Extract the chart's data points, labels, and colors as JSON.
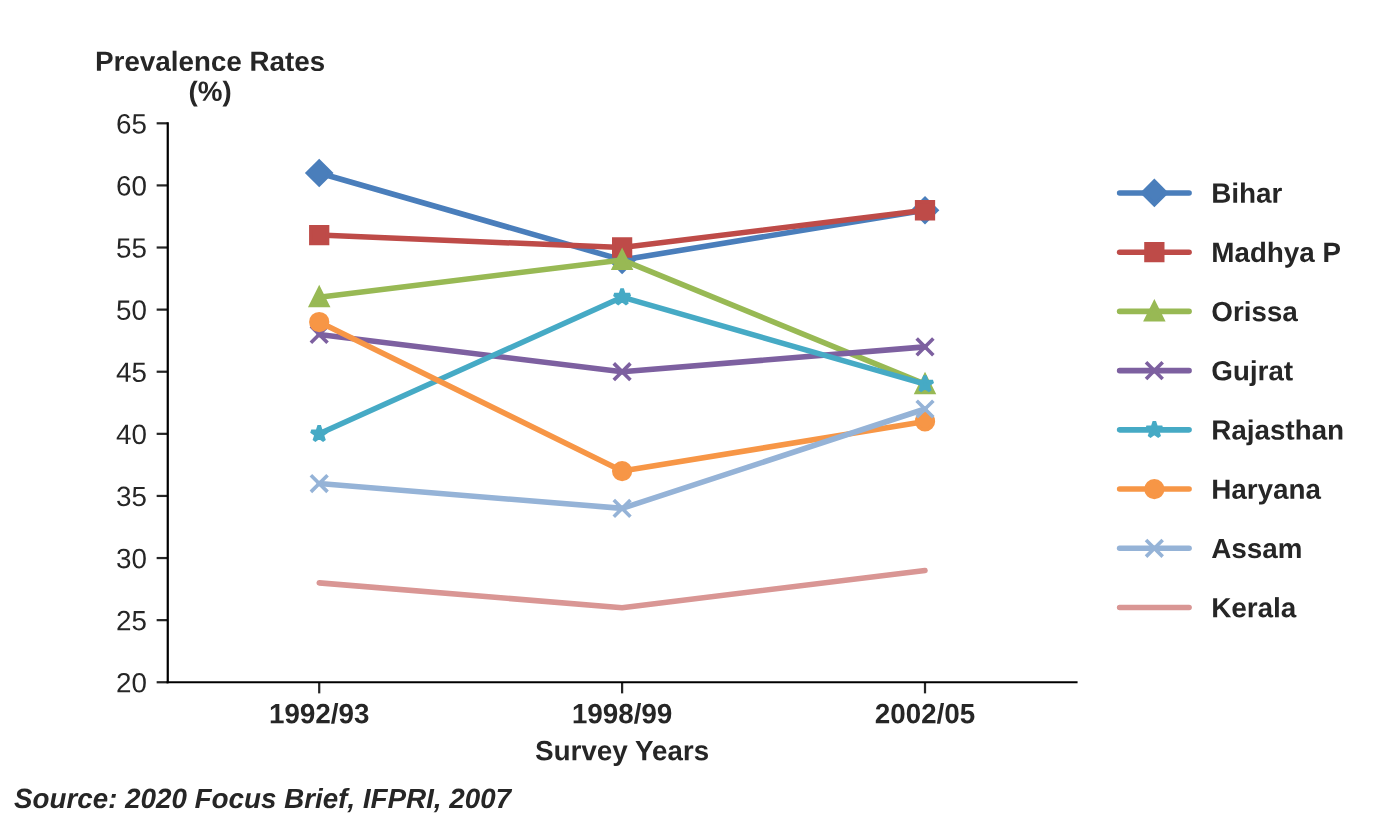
{
  "chart_data": {
    "type": "line",
    "ylabel": "Prevalence Rates\n(%)",
    "xlabel": "Survey Years",
    "categories": [
      "1992/93",
      "1998/99",
      "2002/05"
    ],
    "series": [
      {
        "name": "Bihar",
        "color": "#4a7ebb",
        "marker": "diamond",
        "values": [
          61,
          54,
          58
        ]
      },
      {
        "name": "Madhya P",
        "color": "#be4b48",
        "marker": "square",
        "values": [
          56,
          55,
          58
        ]
      },
      {
        "name": "Orissa",
        "color": "#98b954",
        "marker": "triangle",
        "values": [
          51,
          54,
          44
        ]
      },
      {
        "name": "Gujrat",
        "color": "#7d60a0",
        "marker": "cross",
        "values": [
          48,
          45,
          47
        ]
      },
      {
        "name": "Rajasthan",
        "color": "#46aac5",
        "marker": "star",
        "values": [
          40,
          51,
          44
        ]
      },
      {
        "name": "Haryana",
        "color": "#f79646",
        "marker": "circle",
        "values": [
          49,
          37,
          41
        ]
      },
      {
        "name": "Assam",
        "color": "#95b3d7",
        "marker": "cross",
        "values": [
          36,
          34,
          42
        ]
      },
      {
        "name": "Kerala",
        "color": "#d99694",
        "marker": "none",
        "values": [
          28,
          26,
          29
        ]
      }
    ],
    "ylim": [
      20,
      65
    ],
    "yticks": [
      20,
      25,
      30,
      35,
      40,
      45,
      50,
      55,
      60,
      65
    ],
    "grid": false,
    "legend": "right",
    "annotations": [
      "Source: 2020 Focus Brief, IFPRI, 2007"
    ]
  }
}
